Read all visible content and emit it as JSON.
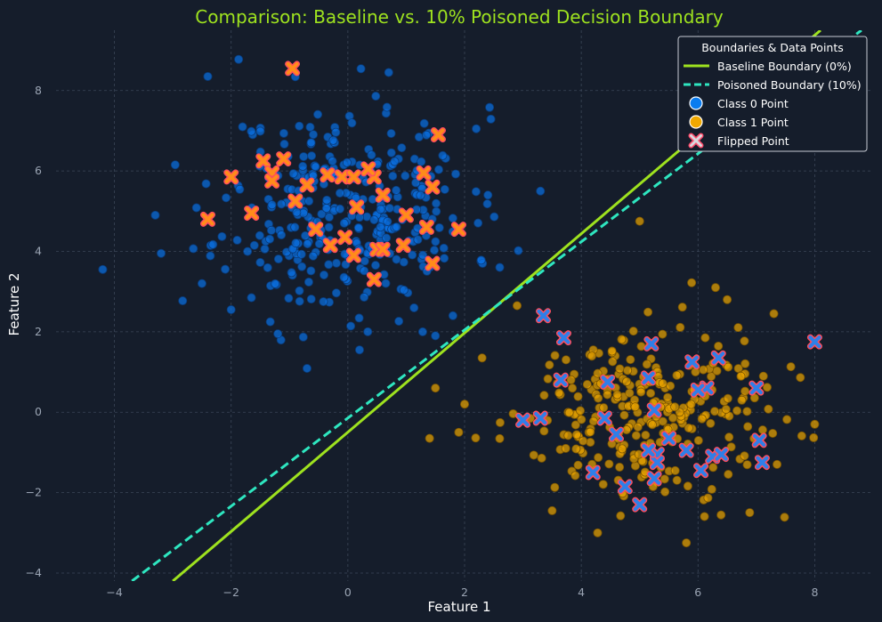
{
  "chart_data": {
    "type": "scatter",
    "title": "Comparison: Baseline vs. 10% Poisoned Decision Boundary",
    "xlabel": "Feature 1",
    "ylabel": "Feature 2",
    "xlim": [
      -5.0,
      9.0
    ],
    "ylim": [
      -4.2,
      9.5
    ],
    "x_ticks": [
      -4,
      -2,
      0,
      2,
      4,
      6,
      8
    ],
    "y_ticks": [
      -4,
      -2,
      0,
      2,
      4,
      6,
      8
    ],
    "x_tick_labels": [
      "−4",
      "−2",
      "0",
      "2",
      "4",
      "6",
      "8"
    ],
    "y_tick_labels": [
      "−4",
      "−2",
      "0",
      "2",
      "4",
      "6",
      "8"
    ],
    "grid": true,
    "legend": {
      "title": "Boundaries & Data Points",
      "position": "top-right",
      "entries": [
        "Baseline Boundary (0%)",
        "Poisoned Boundary (10%)",
        "Class 0 Point",
        "Class 1 Point",
        "Flipped Point"
      ]
    },
    "colors": {
      "background": "#151d2b",
      "baseline": "#9ee21f",
      "poisoned": "#2ee6c0",
      "class0": "#0a6fe0",
      "class1": "#e8a200",
      "flip_fill": "#ff8c1a",
      "flip_edge": "#ff4d5e"
    },
    "lines": [
      {
        "name": "Baseline Boundary (0%)",
        "style": "solid",
        "x": [
          -3.0,
          8.1
        ],
        "y": [
          -4.2,
          9.5
        ]
      },
      {
        "name": "Poisoned Boundary (10%)",
        "style": "dashed",
        "x": [
          -3.7,
          8.8
        ],
        "y": [
          -4.2,
          9.5
        ]
      }
    ],
    "series": [
      {
        "name": "Class 0 Point",
        "x_center": 0.0,
        "y_center": 5.0,
        "x_spread": 1.05,
        "y_spread": 1.3,
        "count": 330,
        "seed": 11,
        "extra_x": [
          -4.2,
          -3.3,
          -3.2,
          -2.4,
          -2.5,
          -2.0,
          0.7,
          0.2,
          1.8,
          2.2,
          3.3,
          1.5,
          2.4,
          -1.2
        ],
        "extra_y": [
          3.55,
          4.9,
          3.95,
          8.35,
          3.2,
          2.55,
          8.45,
          1.55,
          2.4,
          7.05,
          5.5,
          1.9,
          5.4,
          1.95
        ]
      },
      {
        "name": "Class 1 Point",
        "x_center": 5.0,
        "y_center": 0.0,
        "x_spread": 1.05,
        "y_spread": 1.0,
        "count": 290,
        "seed": 29,
        "extra_x": [
          1.5,
          2.0,
          1.4,
          1.9,
          2.3,
          5.0,
          6.3,
          6.5,
          8.0,
          5.8,
          2.9,
          7.3,
          3.5
        ],
        "extra_y": [
          0.6,
          0.2,
          -0.65,
          -0.5,
          1.35,
          4.75,
          3.1,
          2.8,
          -0.3,
          -3.25,
          2.65,
          2.45,
          -2.45
        ]
      }
    ],
    "flipped_as_class1": {
      "x": [
        -0.95,
        -1.45,
        1.55,
        -2.4,
        -2.0,
        -1.3,
        -1.1,
        -0.35,
        -0.1,
        0.1,
        0.45,
        0.35,
        1.3,
        1.45,
        -0.7,
        -0.9,
        -1.65,
        0.15,
        0.6,
        1.0,
        1.35,
        1.9,
        -0.55,
        0.95,
        0.5,
        0.45,
        -0.05,
        0.1,
        1.45,
        -0.3,
        -1.3,
        0.6
      ],
      "y": [
        8.55,
        6.25,
        6.9,
        4.8,
        5.85,
        5.95,
        6.3,
        5.9,
        5.85,
        5.85,
        5.85,
        6.05,
        5.95,
        5.6,
        5.65,
        5.25,
        4.95,
        5.1,
        5.4,
        4.9,
        4.6,
        4.55,
        4.55,
        4.15,
        4.05,
        3.3,
        4.35,
        3.9,
        3.7,
        4.15,
        5.75,
        4.05
      ]
    },
    "flipped_as_class0": {
      "x": [
        3.35,
        3.7,
        3.65,
        3.0,
        3.3,
        4.45,
        4.4,
        4.6,
        4.2,
        4.75,
        5.0,
        5.15,
        5.25,
        5.3,
        5.5,
        5.8,
        5.9,
        6.05,
        6.15,
        6.25,
        6.35,
        6.4,
        7.0,
        7.05,
        7.1,
        8.0,
        5.2,
        5.3,
        5.25,
        6.0,
        5.15
      ],
      "y": [
        2.4,
        1.85,
        0.8,
        -0.2,
        -0.15,
        0.75,
        -0.15,
        -0.55,
        -1.5,
        -1.85,
        -2.3,
        0.85,
        0.05,
        -1.05,
        -0.65,
        -0.95,
        1.25,
        -1.45,
        0.6,
        -1.1,
        1.35,
        -1.05,
        0.6,
        -0.7,
        -1.25,
        1.75,
        1.7,
        -1.25,
        -1.65,
        0.55,
        -0.95
      ]
    }
  }
}
